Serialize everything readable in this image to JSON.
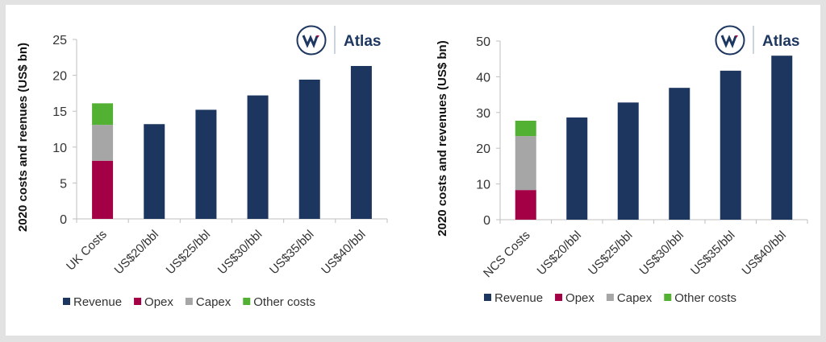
{
  "brand": {
    "name": "Atlas",
    "logo_letter": "W"
  },
  "colors": {
    "Revenue": "#1d3660",
    "Opex": "#a30046",
    "Capex": "#a6a6a6",
    "Other costs": "#52b033",
    "axis": "#bfbfbf",
    "background": "#e2e2e2"
  },
  "chart_data": [
    {
      "type": "stacked-bar",
      "ylabel": "2020 costs and reenues (US$ bn)",
      "ylim": [
        0,
        25
      ],
      "yticks": [
        0,
        5,
        10,
        15,
        20,
        25
      ],
      "grid": false,
      "legend_position": "bottom",
      "categories": [
        "UK Costs",
        "US$20/bbl",
        "US$25/bbl",
        "US$30/bbl",
        "US$35/bbl",
        "US$40/bbl"
      ],
      "series": [
        {
          "name": "Revenue",
          "values": [
            0,
            13.2,
            15.2,
            17.2,
            19.4,
            21.3
          ]
        },
        {
          "name": "Opex",
          "values": [
            8.1,
            0,
            0,
            0,
            0,
            0
          ]
        },
        {
          "name": "Capex",
          "values": [
            5.0,
            0,
            0,
            0,
            0,
            0
          ]
        },
        {
          "name": "Other costs",
          "values": [
            3.0,
            0,
            0,
            0,
            0,
            0
          ]
        }
      ]
    },
    {
      "type": "stacked-bar",
      "ylabel": "2020 costs and revenues (US$ bn)",
      "ylim": [
        0,
        50
      ],
      "yticks": [
        0,
        10,
        20,
        30,
        40,
        50
      ],
      "grid": false,
      "legend_position": "bottom",
      "categories": [
        "NCS Costs",
        "US$20/bbl",
        "US$25/bbl",
        "US$30/bbl",
        "US$35/bbl",
        "US$40/bbl"
      ],
      "series": [
        {
          "name": "Revenue",
          "values": [
            0,
            28.6,
            32.8,
            36.9,
            41.7,
            45.9
          ]
        },
        {
          "name": "Opex",
          "values": [
            8.3,
            0,
            0,
            0,
            0,
            0
          ]
        },
        {
          "name": "Capex",
          "values": [
            15.1,
            0,
            0,
            0,
            0,
            0
          ]
        },
        {
          "name": "Other costs",
          "values": [
            4.3,
            0,
            0,
            0,
            0,
            0
          ]
        }
      ]
    }
  ]
}
